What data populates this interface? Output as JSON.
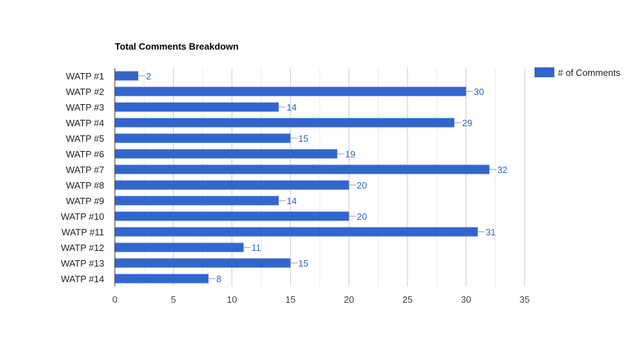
{
  "chart_data": {
    "type": "bar",
    "orientation": "horizontal",
    "title": "Total Comments Breakdown",
    "categories": [
      "WATP #1",
      "WATP #2",
      "WATP #3",
      "WATP #4",
      "WATP #5",
      "WATP #6",
      "WATP #7",
      "WATP #8",
      "WATP #9",
      "WATP #10",
      "WATP #11",
      "WATP #12",
      "WATP #13",
      "WATP #14"
    ],
    "series": [
      {
        "name": "# of Comments",
        "values": [
          2,
          30,
          14,
          29,
          15,
          19,
          32,
          20,
          14,
          20,
          31,
          11,
          15,
          8
        ]
      }
    ],
    "xlim": [
      0,
      35
    ],
    "xticks": [
      0,
      5,
      10,
      15,
      20,
      25,
      30,
      35
    ],
    "grid": true,
    "minor_grid": true,
    "legend_position": "top-right",
    "data_labels": true,
    "colors": {
      "bar": "#3366cc",
      "data_label": "#3366cc",
      "gridline": "#cccccc",
      "minor_gridline": "#ebebeb",
      "axis": "#333333"
    }
  }
}
